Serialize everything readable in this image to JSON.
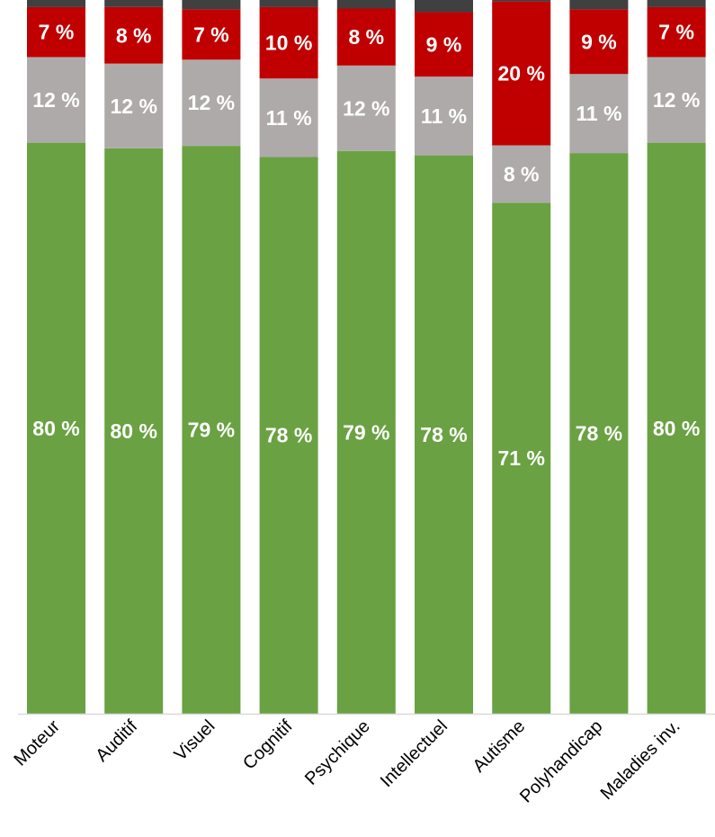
{
  "chart_data": {
    "type": "bar",
    "stacked": true,
    "orientation": "vertical",
    "percent_stacked": true,
    "categories": [
      "Moteur",
      "Auditif",
      "Visuel",
      "Cognitif",
      "Psychique",
      "Intellectuel",
      "Autisme",
      "Polyhandicap",
      "Maladies inv."
    ],
    "series": [
      {
        "values": [
          80,
          80,
          79,
          78,
          79,
          78,
          71,
          78,
          80
        ],
        "labels": [
          "80 %",
          "80 %",
          "79 %",
          "78 %",
          "79 %",
          "78 %",
          "71 %",
          "78 %",
          "80 %"
        ],
        "color": "#6aa142"
      },
      {
        "values": [
          12,
          12,
          12,
          11,
          12,
          11,
          8,
          11,
          12
        ],
        "labels": [
          "12 %",
          "12 %",
          "12 %",
          "11 %",
          "12 %",
          "11 %",
          "8 %",
          "11 %",
          "12 %"
        ],
        "color": "#aeaaaa"
      },
      {
        "values": [
          7,
          8,
          7,
          10,
          8,
          9,
          20,
          9,
          7
        ],
        "labels": [
          "7 %",
          "8 %",
          "7 %",
          "10 %",
          "8 %",
          "9 %",
          "20 %",
          "9 %",
          "7 %"
        ],
        "color": "#c00000"
      },
      {
        "values": [
          1,
          1,
          1.3,
          1,
          1.2,
          1.7,
          0.2,
          1.3,
          1
        ],
        "labels": [],
        "color": "#404040"
      }
    ],
    "ylim": [
      0,
      100
    ],
    "grid": false,
    "legend": "none",
    "title": "",
    "xlabel": "",
    "ylabel": ""
  }
}
